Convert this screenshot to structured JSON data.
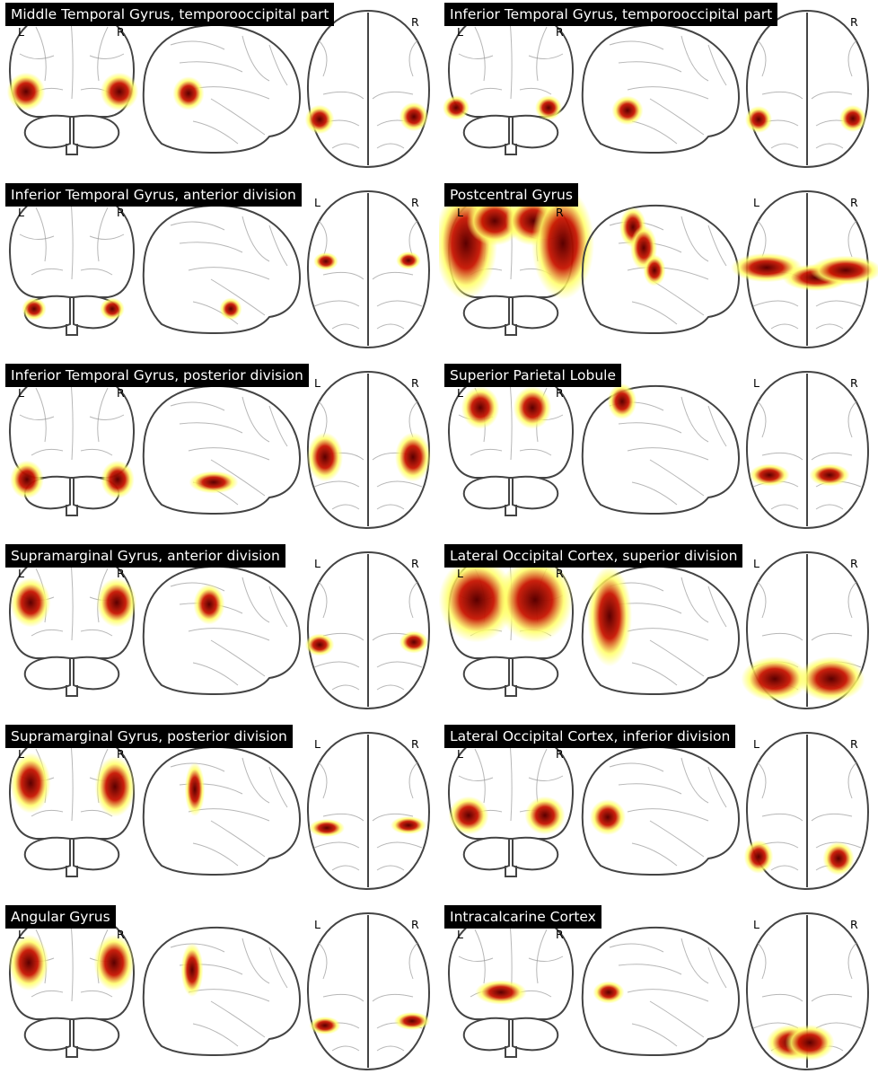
{
  "panels": [
    {
      "title": "Middle Temporal Gyrus, temporooccipital part",
      "coronal_labels": [
        "L",
        "R"
      ],
      "axial_labels": [
        "",
        "R"
      ]
    },
    {
      "title": "Inferior Temporal Gyrus, temporooccipital part",
      "coronal_labels": [
        "L",
        "R"
      ],
      "axial_labels": [
        "",
        "R"
      ]
    },
    {
      "title": "Inferior Temporal Gyrus, anterior division",
      "coronal_labels": [
        "L",
        "R"
      ],
      "axial_labels": [
        "L",
        "R"
      ]
    },
    {
      "title": "Postcentral Gyrus",
      "coronal_labels": [
        "L",
        "R"
      ],
      "axial_labels": [
        "L",
        "R"
      ]
    },
    {
      "title": "Inferior Temporal Gyrus, posterior division",
      "coronal_labels": [
        "L",
        "R"
      ],
      "axial_labels": [
        "L",
        "R"
      ]
    },
    {
      "title": "Superior Parietal Lobule",
      "coronal_labels": [
        "L",
        "R"
      ],
      "axial_labels": [
        "L",
        "R"
      ]
    },
    {
      "title": "Supramarginal Gyrus, anterior division",
      "coronal_labels": [
        "L",
        "R"
      ],
      "axial_labels": [
        "L",
        "R"
      ]
    },
    {
      "title": "Lateral Occipital Cortex, superior division",
      "coronal_labels": [
        "L",
        "R"
      ],
      "axial_labels": [
        "L",
        "R"
      ]
    },
    {
      "title": "Supramarginal Gyrus, posterior division",
      "coronal_labels": [
        "L",
        "R"
      ],
      "axial_labels": [
        "L",
        "R"
      ]
    },
    {
      "title": "Lateral Occipital Cortex, inferior division",
      "coronal_labels": [
        "L",
        "R"
      ],
      "axial_labels": [
        "L",
        "R"
      ]
    },
    {
      "title": "Angular Gyrus",
      "coronal_labels": [
        "L",
        "R"
      ],
      "axial_labels": [
        "L",
        "R"
      ]
    },
    {
      "title": "Intracalcarine Cortex",
      "coronal_labels": [
        "L",
        "R"
      ],
      "axial_labels": [
        "L",
        "R"
      ]
    }
  ],
  "colors": {
    "outline": "#444444",
    "hot_dark": "#5a0000",
    "hot_red": "#c81400",
    "hot_yellow": "#ffff66"
  }
}
